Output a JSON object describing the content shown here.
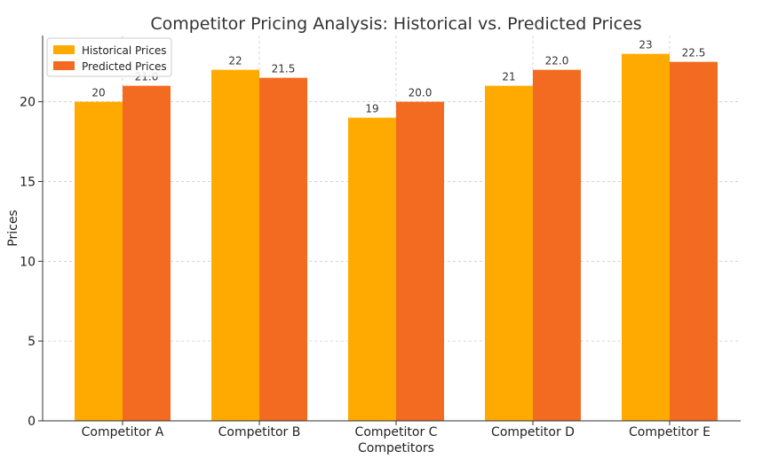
{
  "chart_data": {
    "type": "bar",
    "title": "Competitor Pricing Analysis: Historical vs. Predicted Prices",
    "xlabel": "Competitors",
    "ylabel": "Prices",
    "categories": [
      "Competitor A",
      "Competitor B",
      "Competitor C",
      "Competitor D",
      "Competitor E"
    ],
    "series": [
      {
        "name": "Historical Prices",
        "color": "#FFAA00",
        "values": [
          20,
          22,
          19,
          21,
          23
        ],
        "labels": [
          "20",
          "22",
          "19",
          "21",
          "23"
        ]
      },
      {
        "name": "Predicted Prices",
        "color": "#F26B21",
        "values": [
          21.0,
          21.5,
          20.0,
          22.0,
          22.5
        ],
        "labels": [
          "21.0",
          "21.5",
          "20.0",
          "22.0",
          "22.5"
        ]
      }
    ],
    "ylim": [
      0,
      24.15
    ],
    "yticks": [
      0,
      5,
      10,
      15,
      20
    ],
    "ytick_labels": [
      "0",
      "5",
      "10",
      "15",
      "20"
    ],
    "grid": true,
    "legend_position": "top-left"
  }
}
